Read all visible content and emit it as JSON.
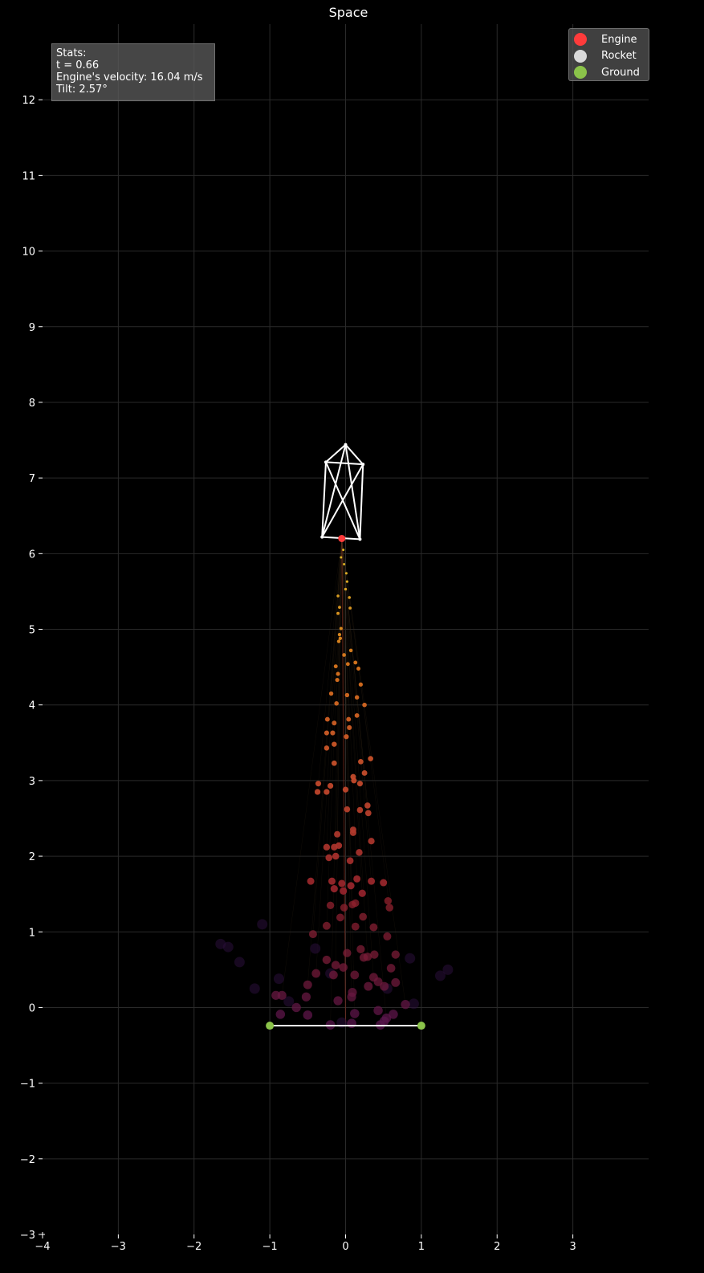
{
  "chart_data": {
    "type": "scatter",
    "title": "Space",
    "xlim": [
      -4,
      4
    ],
    "ylim": [
      -3,
      13
    ],
    "x_ticks": [
      -4,
      -3,
      -2,
      -1,
      0,
      1,
      2,
      3
    ],
    "y_ticks": [
      -3,
      -2,
      -1,
      0,
      1,
      2,
      3,
      4,
      5,
      6,
      7,
      8,
      9,
      10,
      11,
      12
    ],
    "grid": true,
    "background": "#000000",
    "legend_placement": "top-right",
    "legend": [
      {
        "name": "Engine",
        "color": "#ff3b3b"
      },
      {
        "name": "Rocket",
        "color": "#d9d9d9"
      },
      {
        "name": "Ground",
        "color": "#8bc34a"
      }
    ],
    "stats": {
      "heading": "Stats:",
      "time": "t = 0.66",
      "velocity": "Engine's velocity: 16.04 m/s",
      "tilt": "Tilt: 2.57°"
    },
    "engine": {
      "x": -0.05,
      "y": 6.2
    },
    "rocket_nodes": [
      {
        "x": 0.0,
        "y": 7.44
      },
      {
        "x": -0.26,
        "y": 7.21
      },
      {
        "x": 0.23,
        "y": 7.18
      },
      {
        "x": -0.31,
        "y": 6.22
      },
      {
        "x": 0.19,
        "y": 6.19
      }
    ],
    "rocket_edges": [
      [
        0,
        1
      ],
      [
        0,
        2
      ],
      [
        1,
        2
      ],
      [
        1,
        3
      ],
      [
        2,
        4
      ],
      [
        3,
        4
      ],
      [
        1,
        4
      ],
      [
        2,
        3
      ],
      [
        0,
        3
      ],
      [
        0,
        4
      ]
    ],
    "ground": {
      "left": {
        "x": -1.0,
        "y": -0.24
      },
      "right": {
        "x": 1.0,
        "y": -0.24
      }
    },
    "exhaust": [
      {
        "x": -0.03,
        "y": 6.05
      },
      {
        "x": -0.06,
        "y": 5.95
      },
      {
        "x": -0.02,
        "y": 5.86
      },
      {
        "x": 0.01,
        "y": 5.74
      },
      {
        "x": 0.02,
        "y": 5.63
      },
      {
        "x": 0.0,
        "y": 5.53
      },
      {
        "x": -0.1,
        "y": 5.44
      },
      {
        "x": 0.05,
        "y": 5.42
      },
      {
        "x": -0.08,
        "y": 5.29
      },
      {
        "x": 0.06,
        "y": 5.28
      },
      {
        "x": -0.1,
        "y": 5.21
      },
      {
        "x": -0.06,
        "y": 5.01
      },
      {
        "x": -0.08,
        "y": 4.93
      },
      {
        "x": -0.07,
        "y": 4.88
      },
      {
        "x": -0.09,
        "y": 4.84
      },
      {
        "x": 0.07,
        "y": 4.72
      },
      {
        "x": -0.02,
        "y": 4.66
      },
      {
        "x": 0.13,
        "y": 4.56
      },
      {
        "x": 0.03,
        "y": 4.54
      },
      {
        "x": -0.13,
        "y": 4.51
      },
      {
        "x": 0.17,
        "y": 4.48
      },
      {
        "x": -0.1,
        "y": 4.41
      },
      {
        "x": -0.11,
        "y": 4.33
      },
      {
        "x": 0.2,
        "y": 4.27
      },
      {
        "x": -0.19,
        "y": 4.15
      },
      {
        "x": 0.02,
        "y": 4.13
      },
      {
        "x": 0.15,
        "y": 4.1
      },
      {
        "x": -0.12,
        "y": 4.02
      },
      {
        "x": 0.25,
        "y": 4.0
      },
      {
        "x": 0.15,
        "y": 3.86
      },
      {
        "x": 0.04,
        "y": 3.81
      },
      {
        "x": -0.24,
        "y": 3.81
      },
      {
        "x": -0.15,
        "y": 3.76
      },
      {
        "x": 0.05,
        "y": 3.7
      },
      {
        "x": -0.25,
        "y": 3.63
      },
      {
        "x": -0.17,
        "y": 3.63
      },
      {
        "x": 0.01,
        "y": 3.58
      },
      {
        "x": -0.15,
        "y": 3.48
      },
      {
        "x": -0.25,
        "y": 3.43
      },
      {
        "x": 0.33,
        "y": 3.29
      },
      {
        "x": 0.2,
        "y": 3.25
      },
      {
        "x": -0.15,
        "y": 3.23
      },
      {
        "x": 0.25,
        "y": 3.1
      },
      {
        "x": 0.1,
        "y": 3.05
      },
      {
        "x": 0.11,
        "y": 3.0
      },
      {
        "x": -0.36,
        "y": 2.96
      },
      {
        "x": 0.19,
        "y": 2.96
      },
      {
        "x": -0.2,
        "y": 2.93
      },
      {
        "x": 0.0,
        "y": 2.88
      },
      {
        "x": -0.37,
        "y": 2.85
      },
      {
        "x": -0.25,
        "y": 2.85
      },
      {
        "x": 0.29,
        "y": 2.67
      },
      {
        "x": 0.02,
        "y": 2.62
      },
      {
        "x": 0.19,
        "y": 2.61
      },
      {
        "x": 0.3,
        "y": 2.57
      },
      {
        "x": 0.1,
        "y": 2.35
      },
      {
        "x": 0.1,
        "y": 2.31
      },
      {
        "x": -0.11,
        "y": 2.29
      },
      {
        "x": 0.34,
        "y": 2.2
      },
      {
        "x": -0.09,
        "y": 2.14
      },
      {
        "x": -0.25,
        "y": 2.12
      },
      {
        "x": -0.15,
        "y": 2.12
      },
      {
        "x": 0.18,
        "y": 2.05
      },
      {
        "x": -0.13,
        "y": 2.0
      },
      {
        "x": -0.22,
        "y": 1.98
      },
      {
        "x": 0.06,
        "y": 1.94
      },
      {
        "x": 0.15,
        "y": 1.7
      },
      {
        "x": -0.46,
        "y": 1.67
      },
      {
        "x": -0.18,
        "y": 1.67
      },
      {
        "x": 0.34,
        "y": 1.67
      },
      {
        "x": 0.5,
        "y": 1.65
      },
      {
        "x": -0.05,
        "y": 1.64
      },
      {
        "x": 0.07,
        "y": 1.61
      },
      {
        "x": -0.15,
        "y": 1.57
      },
      {
        "x": -0.03,
        "y": 1.54
      },
      {
        "x": 0.22,
        "y": 1.51
      },
      {
        "x": 0.56,
        "y": 1.41
      },
      {
        "x": 0.13,
        "y": 1.38
      },
      {
        "x": 0.09,
        "y": 1.36
      },
      {
        "x": -0.2,
        "y": 1.35
      },
      {
        "x": -0.02,
        "y": 1.32
      },
      {
        "x": 0.58,
        "y": 1.32
      },
      {
        "x": 0.23,
        "y": 1.2
      },
      {
        "x": -0.07,
        "y": 1.19
      },
      {
        "x": -0.25,
        "y": 1.08
      },
      {
        "x": 0.13,
        "y": 1.07
      },
      {
        "x": 0.37,
        "y": 1.06
      },
      {
        "x": -0.43,
        "y": 0.97
      },
      {
        "x": 0.55,
        "y": 0.94
      },
      {
        "x": 0.2,
        "y": 0.77
      },
      {
        "x": 0.02,
        "y": 0.72
      },
      {
        "x": 0.66,
        "y": 0.7
      },
      {
        "x": 0.38,
        "y": 0.7
      },
      {
        "x": 0.29,
        "y": 0.67
      },
      {
        "x": 0.24,
        "y": 0.66
      },
      {
        "x": -0.25,
        "y": 0.63
      },
      {
        "x": -0.13,
        "y": 0.56
      },
      {
        "x": 0.6,
        "y": 0.52
      },
      {
        "x": -0.03,
        "y": 0.53
      },
      {
        "x": -0.39,
        "y": 0.45
      },
      {
        "x": 0.12,
        "y": 0.43
      },
      {
        "x": -0.16,
        "y": 0.43
      },
      {
        "x": 0.37,
        "y": 0.4
      },
      {
        "x": 0.43,
        "y": 0.34
      },
      {
        "x": 0.66,
        "y": 0.33
      },
      {
        "x": -0.5,
        "y": 0.3
      },
      {
        "x": 0.51,
        "y": 0.28
      },
      {
        "x": 0.09,
        "y": 0.2
      },
      {
        "x": 0.08,
        "y": 0.14
      },
      {
        "x": -0.52,
        "y": 0.14
      },
      {
        "x": -0.1,
        "y": 0.09
      },
      {
        "x": 0.79,
        "y": 0.04
      },
      {
        "x": -0.65,
        "y": 0.0
      },
      {
        "x": 0.43,
        "y": -0.04
      },
      {
        "x": 0.12,
        "y": -0.08
      },
      {
        "x": 0.63,
        "y": -0.09
      },
      {
        "x": -0.86,
        "y": -0.09
      },
      {
        "x": 0.54,
        "y": -0.14
      },
      {
        "x": 0.51,
        "y": -0.18
      },
      {
        "x": 0.08,
        "y": -0.21
      },
      {
        "x": -0.2,
        "y": -0.23
      },
      {
        "x": 0.46,
        "y": -0.23
      },
      {
        "x": -0.92,
        "y": 0.16
      },
      {
        "x": -0.84,
        "y": 0.16
      },
      {
        "x": -0.5,
        "y": -0.1
      },
      {
        "x": 0.3,
        "y": 0.28
      }
    ],
    "faded_particles": [
      {
        "x": -1.55,
        "y": 0.8
      },
      {
        "x": -1.65,
        "y": 0.84
      },
      {
        "x": -1.1,
        "y": 1.1
      },
      {
        "x": -1.4,
        "y": 0.6
      },
      {
        "x": 1.35,
        "y": 0.5
      },
      {
        "x": 1.25,
        "y": 0.42
      },
      {
        "x": -0.4,
        "y": 0.78
      },
      {
        "x": -0.88,
        "y": 0.38
      },
      {
        "x": 0.9,
        "y": 0.05
      },
      {
        "x": -0.2,
        "y": 0.45
      },
      {
        "x": -0.75,
        "y": 0.08
      },
      {
        "x": 0.55,
        "y": 0.25
      },
      {
        "x": -0.05,
        "y": -0.2
      },
      {
        "x": 0.85,
        "y": 0.65
      },
      {
        "x": -1.2,
        "y": 0.25
      }
    ],
    "colors": {
      "engine": "#ff3b3b",
      "rocket": "#ffffff",
      "ground": "#8bc34a",
      "grid": "#2a2a2a",
      "axis_text": "#ffffff"
    }
  }
}
